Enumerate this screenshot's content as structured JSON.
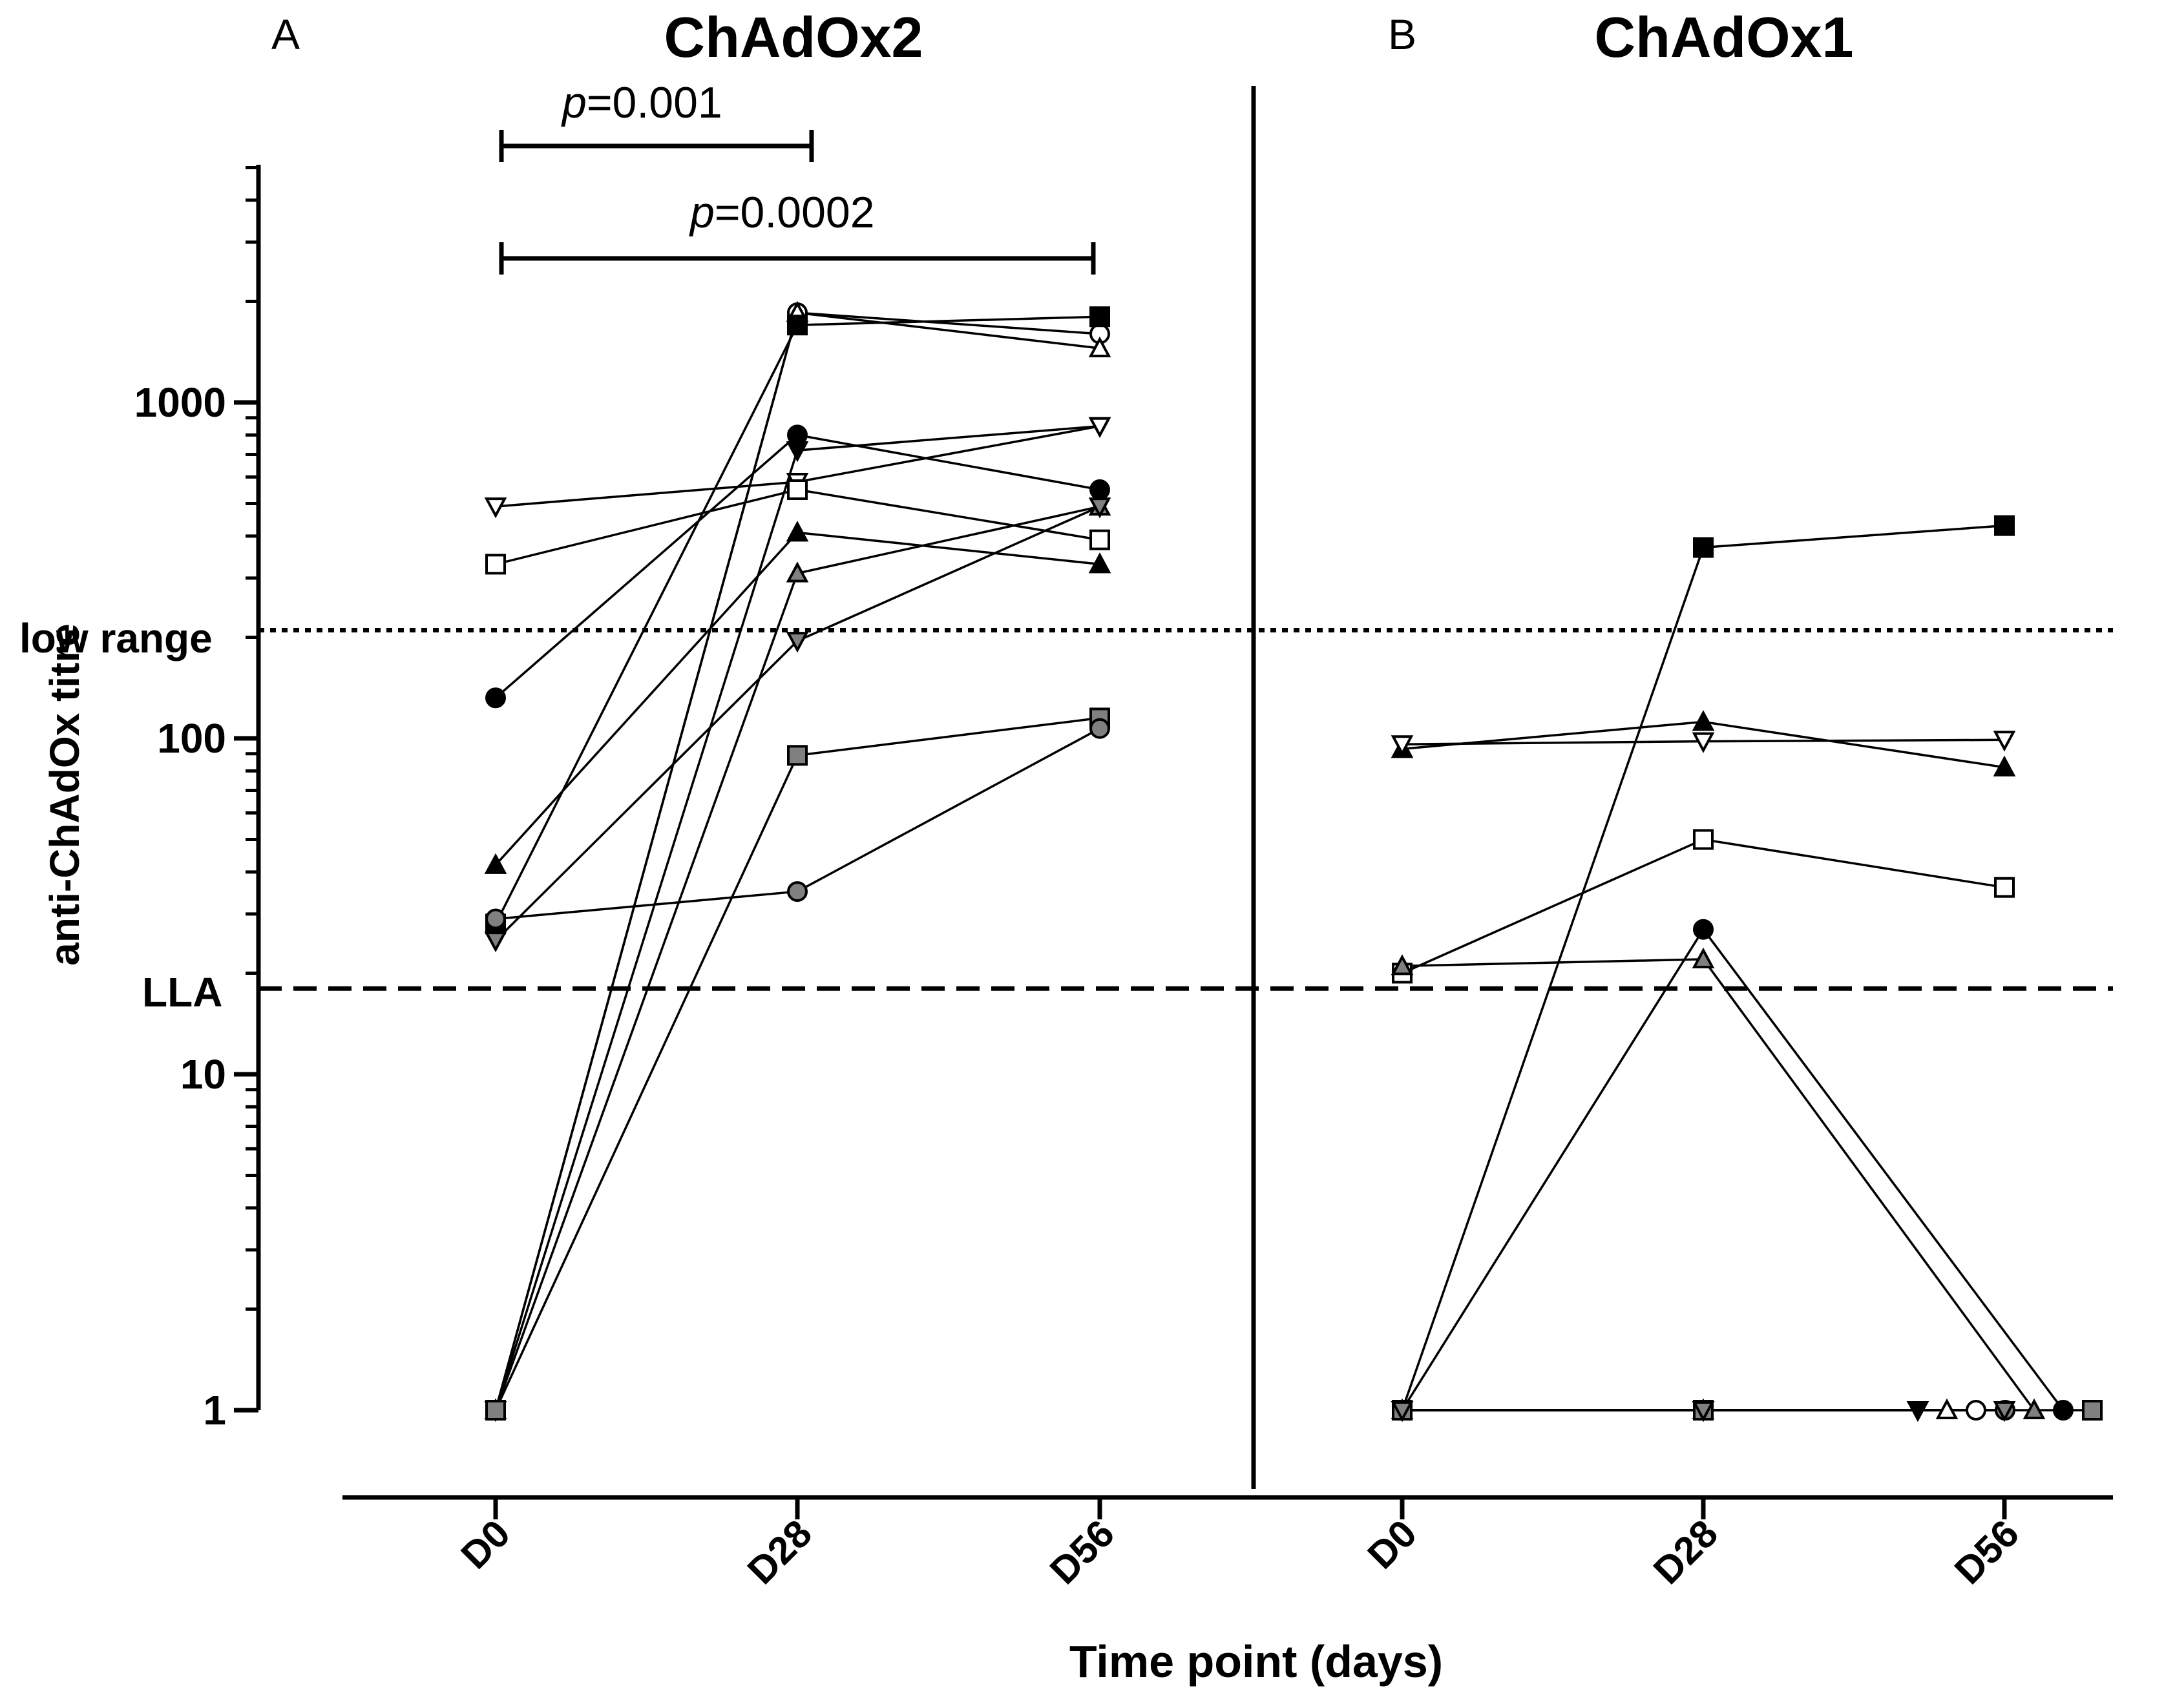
{
  "panels": {
    "left_letter": "A",
    "right_letter": "B",
    "left_title": "ChAdOx2",
    "right_title": "ChAdOx1"
  },
  "significance": [
    {
      "p_symbol": "p",
      "p_value": "=0.001",
      "from": "D0",
      "to": "D28"
    },
    {
      "p_symbol": "p",
      "p_value": "=0.0002",
      "from": "D0",
      "to": "D56"
    }
  ],
  "reference_lines": [
    {
      "label": "low range",
      "value": 210,
      "style": "dotted"
    },
    {
      "label": "LLA",
      "value": 18,
      "style": "dashed"
    }
  ],
  "chart_data": [
    {
      "type": "line",
      "title": "ChAdOx2",
      "panel": "A",
      "xlabel": "Time point (days)",
      "ylabel": "anti-ChAdOx titre",
      "categories": [
        "D0",
        "D28",
        "D56"
      ],
      "yscale": "log",
      "ylim": [
        0.55,
        6000
      ],
      "yticks": [
        1,
        10,
        100,
        1000
      ],
      "series": [
        {
          "marker": "open-circle",
          "values": [
            1,
            1850,
            1600
          ]
        },
        {
          "marker": "open-triangle",
          "values": [
            1,
            1850,
            1450
          ]
        },
        {
          "marker": "filled-square",
          "values": [
            28,
            1700,
            1800
          ]
        },
        {
          "marker": "filled-circle",
          "values": [
            132,
            800,
            550
          ]
        },
        {
          "marker": "filled-inv-triangle",
          "values": [
            1,
            720,
            850
          ]
        },
        {
          "marker": "open-inv-triangle",
          "values": [
            490,
            580,
            850
          ]
        },
        {
          "marker": "open-square",
          "values": [
            330,
            550,
            390
          ]
        },
        {
          "marker": "filled-triangle",
          "values": [
            42,
            410,
            330
          ]
        },
        {
          "marker": "gray-triangle",
          "values": [
            1,
            310,
            490
          ]
        },
        {
          "marker": "gray-inv-triangle",
          "values": [
            25,
            195,
            490
          ]
        },
        {
          "marker": "gray-square",
          "values": [
            1,
            89,
            115
          ]
        },
        {
          "marker": "gray-circle",
          "values": [
            29,
            35,
            107
          ]
        }
      ]
    },
    {
      "type": "line",
      "title": "ChAdOx1",
      "panel": "B",
      "xlabel": "Time point (days)",
      "ylabel": "anti-ChAdOx titre",
      "categories": [
        "D0",
        "D28",
        "D56"
      ],
      "yscale": "log",
      "ylim": [
        0.55,
        6000
      ],
      "yticks": [
        1,
        10,
        100,
        1000
      ],
      "series": [
        {
          "marker": "filled-square",
          "values": [
            1,
            370,
            430
          ]
        },
        {
          "marker": "filled-triangle",
          "values": [
            93,
            112,
            82
          ]
        },
        {
          "marker": "open-inv-triangle",
          "values": [
            96,
            98,
            99
          ]
        },
        {
          "marker": "open-square",
          "values": [
            20,
            50,
            36
          ]
        },
        {
          "marker": "filled-circle",
          "values": [
            1,
            27,
            1
          ]
        },
        {
          "marker": "gray-triangle",
          "values": [
            21,
            22,
            1
          ]
        },
        {
          "marker": "open-circle",
          "values": [
            1,
            1,
            1
          ]
        },
        {
          "marker": "open-triangle",
          "values": [
            1,
            1,
            1
          ]
        },
        {
          "marker": "filled-inv-triangle",
          "values": [
            1,
            1,
            1
          ]
        },
        {
          "marker": "gray-circle",
          "values": [
            1,
            1,
            1
          ]
        },
        {
          "marker": "gray-square",
          "values": [
            1,
            1,
            1
          ]
        },
        {
          "marker": "gray-inv-triangle",
          "values": [
            1,
            1,
            1
          ]
        }
      ]
    }
  ]
}
